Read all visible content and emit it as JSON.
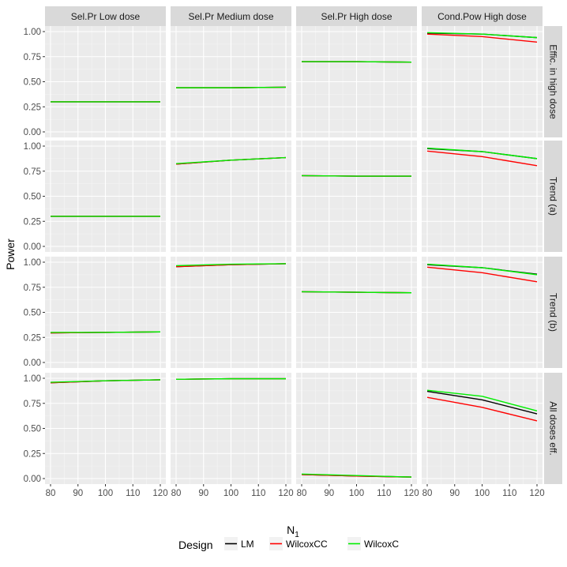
{
  "chart_data": {
    "type": "line",
    "title": "",
    "xlabel": "N",
    "xlabel_subscript": "1",
    "ylabel": "Power",
    "x_ticks": [
      80,
      90,
      100,
      110,
      120
    ],
    "xlim": [
      80,
      120
    ],
    "y_ticks": [
      0.0,
      0.25,
      0.5,
      0.75,
      1.0
    ],
    "y_tick_labels": [
      "0.00",
      "0.25",
      "0.50",
      "0.75",
      "1.00"
    ],
    "ylim": [
      0,
      1
    ],
    "grid": true,
    "legend": {
      "title": "Design",
      "placement": "bottom",
      "entries": [
        {
          "name": "LM",
          "color": "#000000"
        },
        {
          "name": "WilcoxCC",
          "color": "#ff0000"
        },
        {
          "name": "WilcoxC",
          "color": "#00ee00"
        }
      ]
    },
    "columns": [
      "Sel.Pr Low dose",
      "Sel.Pr Medium dose",
      "Sel.Pr High dose",
      "Cond.Pow High dose"
    ],
    "rows": [
      "Effic. in high dose",
      "Trend (a)",
      "Trend (b)",
      "All doses eff."
    ],
    "x": [
      80,
      100,
      120
    ],
    "panels": [
      [
        {
          "series": [
            {
              "name": "LM",
              "values": [
                0.3,
                0.3,
                0.3
              ]
            },
            {
              "name": "WilcoxCC",
              "values": [
                0.3,
                0.3,
                0.3
              ]
            },
            {
              "name": "WilcoxC",
              "values": [
                0.3,
                0.3,
                0.3
              ]
            }
          ]
        },
        {
          "series": [
            {
              "name": "LM",
              "values": [
                0.44,
                0.44,
                0.445
              ]
            },
            {
              "name": "WilcoxCC",
              "values": [
                0.44,
                0.44,
                0.445
              ]
            },
            {
              "name": "WilcoxC",
              "values": [
                0.44,
                0.44,
                0.445
              ]
            }
          ]
        },
        {
          "series": [
            {
              "name": "LM",
              "values": [
                0.7,
                0.7,
                0.695
              ]
            },
            {
              "name": "WilcoxCC",
              "values": [
                0.7,
                0.7,
                0.695
              ]
            },
            {
              "name": "WilcoxC",
              "values": [
                0.7,
                0.7,
                0.695
              ]
            }
          ]
        },
        {
          "series": [
            {
              "name": "LM",
              "values": [
                0.985,
                0.975,
                0.94
              ]
            },
            {
              "name": "WilcoxCC",
              "values": [
                0.975,
                0.95,
                0.895
              ]
            },
            {
              "name": "WilcoxC",
              "values": [
                0.99,
                0.975,
                0.94
              ]
            }
          ]
        }
      ],
      [
        {
          "series": [
            {
              "name": "LM",
              "values": [
                0.3,
                0.3,
                0.3
              ]
            },
            {
              "name": "WilcoxCC",
              "values": [
                0.3,
                0.3,
                0.3
              ]
            },
            {
              "name": "WilcoxC",
              "values": [
                0.3,
                0.3,
                0.3
              ]
            }
          ]
        },
        {
          "series": [
            {
              "name": "LM",
              "values": [
                0.82,
                0.86,
                0.885
              ]
            },
            {
              "name": "WilcoxCC",
              "values": [
                0.82,
                0.86,
                0.885
              ]
            },
            {
              "name": "WilcoxC",
              "values": [
                0.825,
                0.86,
                0.885
              ]
            }
          ]
        },
        {
          "series": [
            {
              "name": "LM",
              "values": [
                0.705,
                0.7,
                0.7
              ]
            },
            {
              "name": "WilcoxCC",
              "values": [
                0.705,
                0.7,
                0.7
              ]
            },
            {
              "name": "WilcoxC",
              "values": [
                0.705,
                0.7,
                0.7
              ]
            }
          ]
        },
        {
          "series": [
            {
              "name": "LM",
              "values": [
                0.975,
                0.945,
                0.875
              ]
            },
            {
              "name": "WilcoxCC",
              "values": [
                0.95,
                0.895,
                0.805
              ]
            },
            {
              "name": "WilcoxC",
              "values": [
                0.98,
                0.945,
                0.875
              ]
            }
          ]
        }
      ],
      [
        {
          "series": [
            {
              "name": "LM",
              "values": [
                0.295,
                0.3,
                0.305
              ]
            },
            {
              "name": "WilcoxCC",
              "values": [
                0.295,
                0.3,
                0.305
              ]
            },
            {
              "name": "WilcoxC",
              "values": [
                0.3,
                0.3,
                0.305
              ]
            }
          ]
        },
        {
          "series": [
            {
              "name": "LM",
              "values": [
                0.955,
                0.975,
                0.985
              ]
            },
            {
              "name": "WilcoxCC",
              "values": [
                0.955,
                0.975,
                0.985
              ]
            },
            {
              "name": "WilcoxC",
              "values": [
                0.965,
                0.98,
                0.985
              ]
            }
          ]
        },
        {
          "series": [
            {
              "name": "LM",
              "values": [
                0.705,
                0.7,
                0.695
              ]
            },
            {
              "name": "WilcoxCC",
              "values": [
                0.705,
                0.7,
                0.695
              ]
            },
            {
              "name": "WilcoxC",
              "values": [
                0.705,
                0.7,
                0.695
              ]
            }
          ]
        },
        {
          "series": [
            {
              "name": "LM",
              "values": [
                0.975,
                0.945,
                0.88
              ]
            },
            {
              "name": "WilcoxCC",
              "values": [
                0.95,
                0.895,
                0.805
              ]
            },
            {
              "name": "WilcoxC",
              "values": [
                0.98,
                0.945,
                0.875
              ]
            }
          ]
        }
      ],
      [
        {
          "series": [
            {
              "name": "LM",
              "values": [
                0.955,
                0.975,
                0.985
              ]
            },
            {
              "name": "WilcoxCC",
              "values": [
                0.955,
                0.975,
                0.985
              ]
            },
            {
              "name": "WilcoxC",
              "values": [
                0.96,
                0.975,
                0.985
              ]
            }
          ]
        },
        {
          "series": [
            {
              "name": "LM",
              "values": [
                0.99,
                0.995,
                0.995
              ]
            },
            {
              "name": "WilcoxCC",
              "values": [
                0.99,
                0.995,
                0.995
              ]
            },
            {
              "name": "WilcoxC",
              "values": [
                0.99,
                0.995,
                0.995
              ]
            }
          ]
        },
        {
          "series": [
            {
              "name": "LM",
              "values": [
                0.04,
                0.025,
                0.015
              ]
            },
            {
              "name": "WilcoxCC",
              "values": [
                0.04,
                0.025,
                0.015
              ]
            },
            {
              "name": "WilcoxC",
              "values": [
                0.045,
                0.03,
                0.015
              ]
            }
          ]
        },
        {
          "series": [
            {
              "name": "LM",
              "values": [
                0.87,
                0.785,
                0.645
              ]
            },
            {
              "name": "WilcoxCC",
              "values": [
                0.81,
                0.71,
                0.575
              ]
            },
            {
              "name": "WilcoxC",
              "values": [
                0.88,
                0.82,
                0.675
              ]
            }
          ]
        }
      ]
    ]
  }
}
